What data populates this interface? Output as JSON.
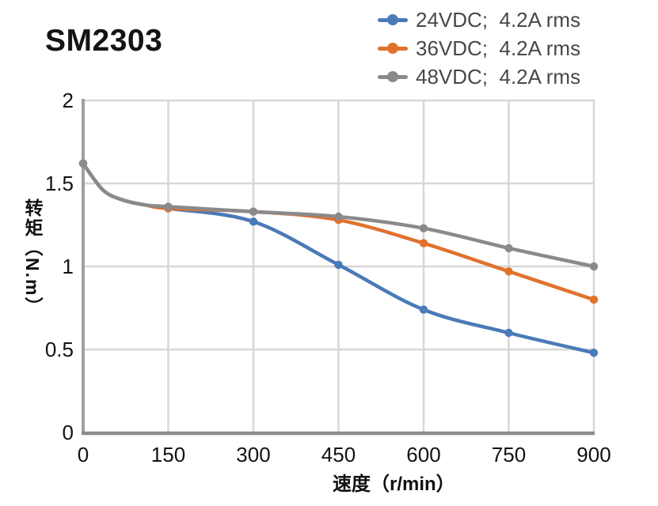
{
  "header": {
    "title": "SM2303"
  },
  "colors": {
    "background": "#ffffff",
    "grid": "#d7d7d7",
    "y_axis": "#9ea0a3",
    "x_axis": "#8a8c8f",
    "tick_label": "#121212",
    "axis_title": "#111111",
    "legend_text": "#484848",
    "title_text": "#141414"
  },
  "chart_data": {
    "type": "line",
    "title": "SM2303",
    "xlabel": "速度（r/min）",
    "ylabel": "转矩（N.m）",
    "x_unit": "r/min",
    "y_unit": "N.m",
    "xlim": [
      0,
      900
    ],
    "ylim": [
      0,
      2
    ],
    "x_ticks": [
      0,
      150,
      300,
      450,
      600,
      750,
      900
    ],
    "x_tick_labels": [
      "0",
      "150",
      "300",
      "450",
      "600",
      "750",
      "900"
    ],
    "y_ticks": [
      0,
      0.5,
      1,
      1.5,
      2
    ],
    "y_tick_labels": [
      "0",
      "0.5",
      "1",
      "1.5",
      "2"
    ],
    "grid": true,
    "legend_position": "top-right",
    "marker": "circle",
    "x": [
      0,
      150,
      300,
      450,
      600,
      750,
      900
    ],
    "series": [
      {
        "name": "24VDC;  4.2A rms",
        "color": "#4A7AB7",
        "values": [
          1.62,
          1.35,
          1.27,
          1.01,
          0.74,
          0.6,
          0.48
        ],
        "curve": {
          "x": [
            0,
            35,
            70,
            110,
            150,
            300,
            450,
            600,
            750,
            900
          ],
          "y": [
            1.62,
            1.46,
            1.4,
            1.37,
            1.35,
            1.27,
            1.01,
            0.74,
            0.6,
            0.48
          ]
        }
      },
      {
        "name": "36VDC;  4.2A rms",
        "color": "#E0722E",
        "values": [
          1.62,
          1.35,
          1.33,
          1.28,
          1.14,
          0.97,
          0.8
        ],
        "curve": {
          "x": [
            0,
            35,
            70,
            110,
            150,
            300,
            450,
            600,
            750,
            900
          ],
          "y": [
            1.62,
            1.46,
            1.4,
            1.37,
            1.35,
            1.33,
            1.28,
            1.14,
            0.97,
            0.8
          ]
        }
      },
      {
        "name": "48VDC;  4.2A rms",
        "color": "#8A8A8C",
        "values": [
          1.62,
          1.36,
          1.33,
          1.3,
          1.23,
          1.11,
          1.0
        ],
        "curve": {
          "x": [
            0,
            35,
            70,
            110,
            150,
            300,
            450,
            600,
            750,
            900
          ],
          "y": [
            1.62,
            1.46,
            1.4,
            1.37,
            1.36,
            1.33,
            1.3,
            1.23,
            1.11,
            1.0
          ]
        }
      }
    ]
  }
}
